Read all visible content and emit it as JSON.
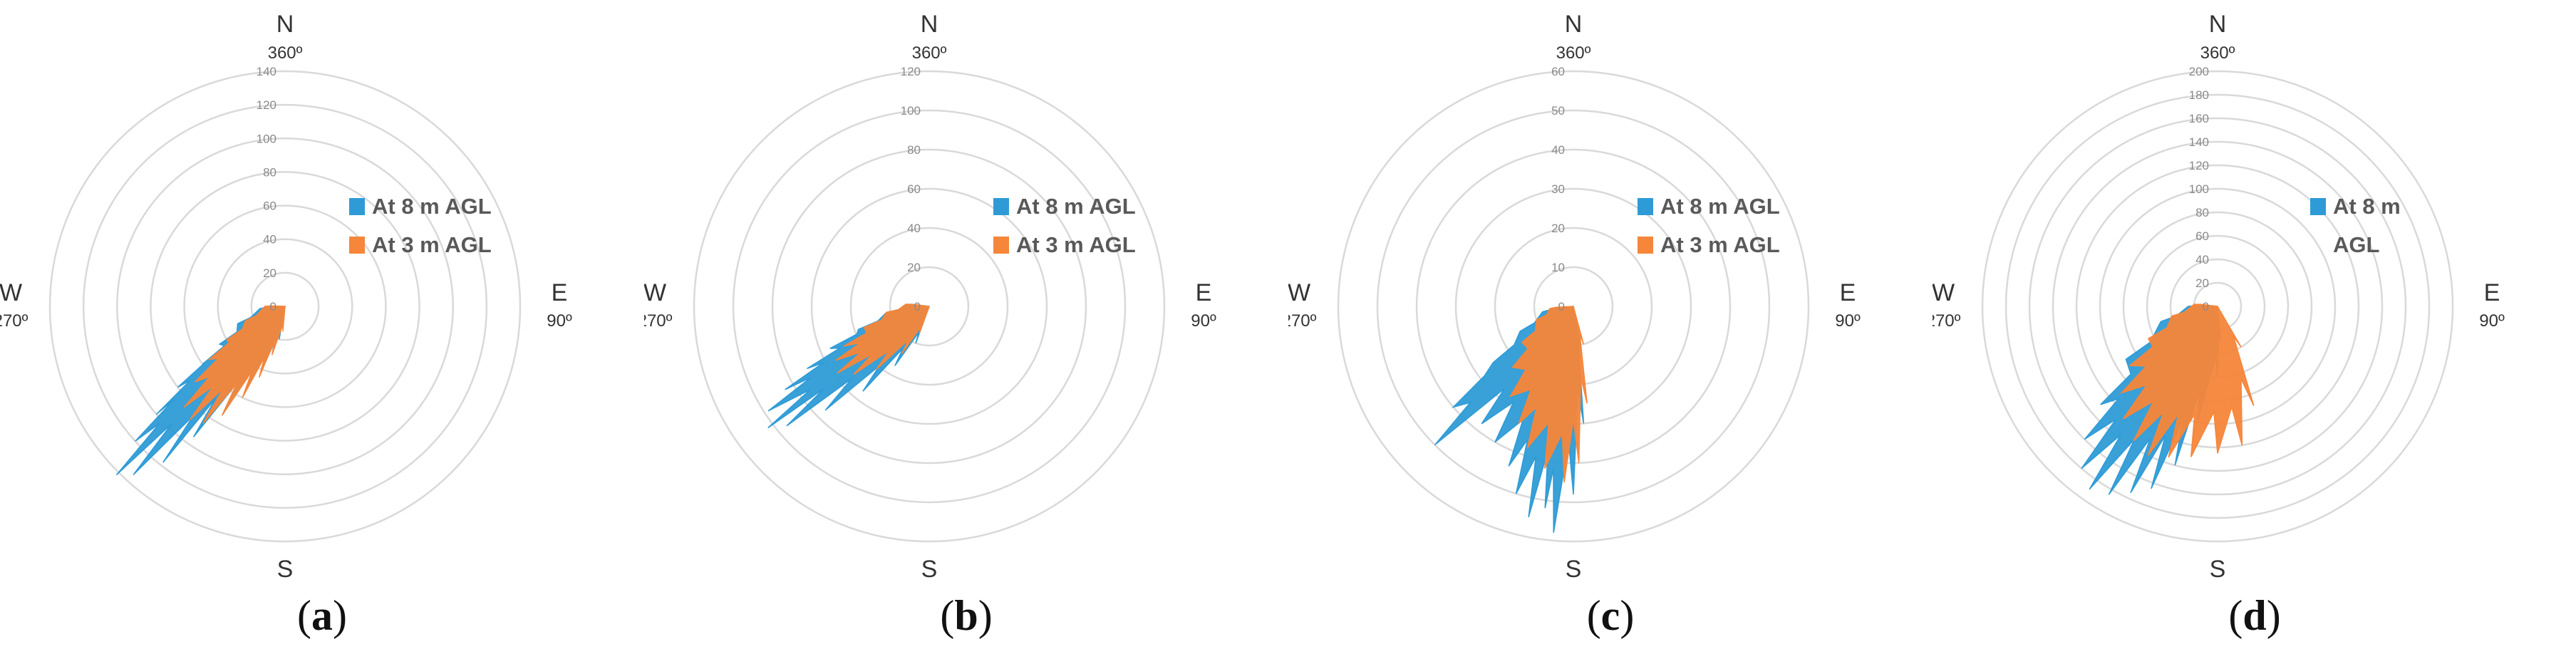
{
  "chart_data": [
    {
      "type": "radar",
      "panel_label": "a",
      "radial_ticks": [
        "0",
        "20",
        "40",
        "60",
        "80",
        "100",
        "120",
        "140"
      ],
      "rmax": 140,
      "directions": {
        "N": "N",
        "N_deg": "360º",
        "E": "E",
        "E_deg": "90º",
        "S": "S",
        "S_deg": "180º",
        "W": "W",
        "W_deg": "270º"
      },
      "legend": [
        "At 8 m AGL",
        "At 3 m AGL"
      ],
      "legend_placement": "center-right",
      "series": [
        {
          "name": "At 8 m AGL",
          "color": "#2E9BD6",
          "points": [
            [
              190,
              20
            ],
            [
              200,
              40
            ],
            [
              205,
              55
            ],
            [
              210,
              75
            ],
            [
              215,
              95
            ],
            [
              218,
              118
            ],
            [
              222,
              135
            ],
            [
              225,
              142
            ],
            [
              228,
              120
            ],
            [
              230,
              100
            ],
            [
              233,
              80
            ],
            [
              235,
              60
            ],
            [
              240,
              45
            ],
            [
              250,
              30
            ],
            [
              265,
              15
            ]
          ]
        },
        {
          "name": "At 3 m AGL",
          "color": "#F5863A",
          "points": [
            [
              185,
              15
            ],
            [
              195,
              30
            ],
            [
              200,
              45
            ],
            [
              205,
              60
            ],
            [
              210,
              75
            ],
            [
              215,
              85
            ],
            [
              220,
              88
            ],
            [
              225,
              85
            ],
            [
              230,
              70
            ],
            [
              235,
              55
            ],
            [
              240,
              40
            ],
            [
              250,
              25
            ],
            [
              270,
              12
            ]
          ]
        }
      ]
    },
    {
      "type": "radar",
      "panel_label": "b",
      "radial_ticks": [
        "0",
        "20",
        "40",
        "60",
        "80",
        "100",
        "120"
      ],
      "rmax": 120,
      "directions": {
        "N": "N",
        "N_deg": "360º",
        "E": "E",
        "E_deg": "90º",
        "S": "S",
        "S_deg": "180º",
        "W": "W",
        "W_deg": "270º"
      },
      "legend": [
        "At 8 m AGL",
        "At 3 m AGL"
      ],
      "legend_placement": "center-right",
      "series": [
        {
          "name": "At 8 m AGL",
          "color": "#2E9BD6",
          "points": [
            [
              200,
              20
            ],
            [
              210,
              35
            ],
            [
              218,
              55
            ],
            [
              225,
              75
            ],
            [
              230,
              95
            ],
            [
              233,
              103
            ],
            [
              237,
              98
            ],
            [
              240,
              85
            ],
            [
              243,
              70
            ],
            [
              247,
              55
            ],
            [
              252,
              38
            ],
            [
              262,
              22
            ],
            [
              275,
              12
            ]
          ]
        },
        {
          "name": "At 3 m AGL",
          "color": "#F5863A",
          "points": [
            [
              200,
              15
            ],
            [
              210,
              28
            ],
            [
              220,
              42
            ],
            [
              228,
              52
            ],
            [
              234,
              58
            ],
            [
              240,
              55
            ],
            [
              245,
              48
            ],
            [
              252,
              35
            ],
            [
              262,
              22
            ],
            [
              275,
              12
            ]
          ]
        }
      ]
    },
    {
      "type": "radar",
      "panel_label": "c",
      "radial_ticks": [
        "0",
        "10",
        "20",
        "30",
        "40",
        "50",
        "60"
      ],
      "rmax": 60,
      "directions": {
        "N": "N",
        "N_deg": "360º",
        "E": "E",
        "E_deg": "90º",
        "S": "S",
        "S_deg": "180º",
        "W": "W",
        "W_deg": "270º"
      },
      "legend": [
        "At 8 m AGL",
        "At 3 m AGL"
      ],
      "legend_placement": "center-right",
      "series": [
        {
          "name": "At 8 m AGL",
          "color": "#2E9BD6",
          "points": [
            [
              170,
              12
            ],
            [
              175,
              30
            ],
            [
              180,
              48
            ],
            [
              185,
              58
            ],
            [
              188,
              52
            ],
            [
              192,
              55
            ],
            [
              197,
              50
            ],
            [
              202,
              44
            ],
            [
              210,
              40
            ],
            [
              218,
              38
            ],
            [
              225,
              50
            ],
            [
              230,
              40
            ],
            [
              235,
              25
            ],
            [
              245,
              15
            ],
            [
              260,
              8
            ]
          ]
        },
        {
          "name": "At 3 m AGL",
          "color": "#F5863A",
          "points": [
            [
              165,
              10
            ],
            [
              172,
              25
            ],
            [
              178,
              40
            ],
            [
              183,
              45
            ],
            [
              190,
              42
            ],
            [
              198,
              38
            ],
            [
              205,
              33
            ],
            [
              215,
              28
            ],
            [
              225,
              22
            ],
            [
              235,
              16
            ],
            [
              250,
              10
            ],
            [
              265,
              6
            ]
          ]
        }
      ]
    },
    {
      "type": "radar",
      "panel_label": "d",
      "radial_ticks": [
        "0",
        "20",
        "40",
        "60",
        "80",
        "100",
        "120",
        "140",
        "160",
        "180",
        "200"
      ],
      "rmax": 200,
      "directions": {
        "N": "N",
        "N_deg": "360º",
        "E": "E",
        "E_deg": "90º",
        "S": "S",
        "S_deg": "180º",
        "W": "W",
        "W_deg": "270º"
      },
      "legend": [
        "At 8 m",
        "AGL"
      ],
      "legend_placement": "center-right",
      "series": [
        {
          "name": "At 8 m AGL",
          "color": "#2E9BD6",
          "points": [
            [
              175,
              30
            ],
            [
              180,
              60
            ],
            [
              190,
              100
            ],
            [
              195,
              140
            ],
            [
              200,
              165
            ],
            [
              205,
              175
            ],
            [
              210,
              185
            ],
            [
              215,
              190
            ],
            [
              220,
              180
            ],
            [
              225,
              160
            ],
            [
              230,
              130
            ],
            [
              240,
              90
            ],
            [
              255,
              50
            ],
            [
              270,
              25
            ]
          ]
        },
        {
          "name": "",
          "color": "#F5863A",
          "points": [
            [
              150,
              40
            ],
            [
              160,
              90
            ],
            [
              170,
              120
            ],
            [
              180,
              125
            ],
            [
              190,
              130
            ],
            [
              198,
              135
            ],
            [
              205,
              140
            ],
            [
              212,
              135
            ],
            [
              220,
              125
            ],
            [
              228,
              110
            ],
            [
              236,
              90
            ],
            [
              245,
              65
            ],
            [
              258,
              40
            ],
            [
              275,
              20
            ]
          ]
        }
      ]
    }
  ]
}
